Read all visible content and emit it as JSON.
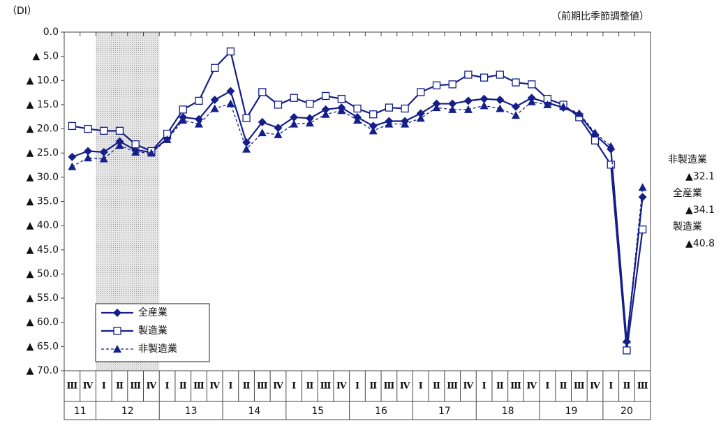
{
  "chart_data": {
    "type": "line",
    "unit_label": "（DI）",
    "note": "（前期比季節調整値）",
    "categories": [
      "Ⅲ",
      "Ⅳ",
      "Ⅰ",
      "Ⅱ",
      "Ⅲ",
      "Ⅳ",
      "Ⅰ",
      "Ⅱ",
      "Ⅲ",
      "Ⅳ",
      "Ⅰ",
      "Ⅱ",
      "Ⅲ",
      "Ⅳ",
      "Ⅰ",
      "Ⅱ",
      "Ⅲ",
      "Ⅳ",
      "Ⅰ",
      "Ⅱ",
      "Ⅲ",
      "Ⅳ",
      "Ⅰ",
      "Ⅱ",
      "Ⅲ",
      "Ⅳ",
      "Ⅰ",
      "Ⅱ",
      "Ⅲ",
      "Ⅳ",
      "Ⅰ",
      "Ⅱ",
      "Ⅲ",
      "Ⅳ",
      "Ⅰ",
      "Ⅱ",
      "Ⅲ"
    ],
    "years": [
      "11",
      null,
      "12",
      null,
      null,
      null,
      "13",
      null,
      null,
      null,
      "14",
      null,
      null,
      null,
      "15",
      null,
      null,
      null,
      "16",
      null,
      null,
      null,
      "17",
      null,
      null,
      null,
      "18",
      null,
      null,
      null,
      "19",
      null,
      null,
      null,
      "20",
      null,
      null
    ],
    "shaded_year": "12",
    "ylim": [
      0,
      -70
    ],
    "yticks": [
      {
        "value": 0,
        "label": "0.0"
      },
      {
        "value": -5,
        "label": "▲ 5.0"
      },
      {
        "value": -10,
        "label": "▲ 10.0"
      },
      {
        "value": -15,
        "label": "▲ 15.0"
      },
      {
        "value": -20,
        "label": "▲ 20.0"
      },
      {
        "value": -25,
        "label": "▲ 25.0"
      },
      {
        "value": -30,
        "label": "▲ 30.0"
      },
      {
        "value": -35,
        "label": "▲ 35.0"
      },
      {
        "value": -40,
        "label": "▲ 40.0"
      },
      {
        "value": -45,
        "label": "▲ 45.0"
      },
      {
        "value": -50,
        "label": "▲ 50.0"
      },
      {
        "value": -55,
        "label": "▲ 55.0"
      },
      {
        "value": -60,
        "label": "▲ 60.0"
      },
      {
        "value": -65,
        "label": "▲ 65.0"
      },
      {
        "value": -70,
        "label": "▲ 70.0"
      }
    ],
    "series": [
      {
        "name": "全産業",
        "color": "#141f8a",
        "marker": "diamond",
        "dashed": false,
        "values": [
          -25.8,
          -24.6,
          -24.8,
          -22.6,
          -24.4,
          -24.8,
          -22.0,
          -17.6,
          -18.0,
          -14.0,
          -12.2,
          -22.8,
          -18.6,
          -19.8,
          -17.6,
          -17.8,
          -16.0,
          -15.6,
          -17.6,
          -19.4,
          -18.4,
          -18.4,
          -16.8,
          -14.8,
          -14.8,
          -14.2,
          -13.8,
          -14.0,
          -15.4,
          -13.6,
          -14.6,
          -15.6,
          -17.0,
          -21.2,
          -24.2,
          -64.0,
          -34.1
        ]
      },
      {
        "name": "製造業",
        "color": "#141f8a",
        "marker": "square",
        "dashed": false,
        "values": [
          -19.4,
          -20.0,
          -20.4,
          -20.4,
          -23.2,
          -24.6,
          -21.0,
          -16.0,
          -14.2,
          -7.4,
          -4.0,
          -17.8,
          -12.4,
          -15.0,
          -13.6,
          -14.8,
          -13.2,
          -13.8,
          -15.8,
          -17.0,
          -15.6,
          -15.8,
          -12.4,
          -11.0,
          -10.8,
          -8.8,
          -9.4,
          -8.8,
          -10.4,
          -10.8,
          -13.8,
          -15.0,
          -17.6,
          -22.4,
          -27.4,
          -65.8,
          -40.8
        ]
      },
      {
        "name": "非製造業",
        "color": "#141f8a",
        "marker": "triangle",
        "dashed": true,
        "values": [
          -27.8,
          -26.0,
          -26.2,
          -23.4,
          -24.8,
          -25.0,
          -22.2,
          -18.2,
          -19.0,
          -15.8,
          -14.8,
          -24.2,
          -20.8,
          -21.2,
          -19.0,
          -18.8,
          -17.0,
          -16.2,
          -18.2,
          -20.4,
          -19.0,
          -19.0,
          -17.8,
          -15.6,
          -16.0,
          -16.0,
          -15.2,
          -15.8,
          -17.2,
          -14.4,
          -15.0,
          -15.4,
          -16.8,
          -20.8,
          -23.6,
          -63.6,
          -32.1
        ]
      }
    ],
    "end_labels": [
      {
        "name": "非製造業",
        "label": "▲32.1"
      },
      {
        "name": "全産業",
        "label": "▲34.1"
      },
      {
        "name": "製造業",
        "label": "▲40.8"
      }
    ]
  }
}
